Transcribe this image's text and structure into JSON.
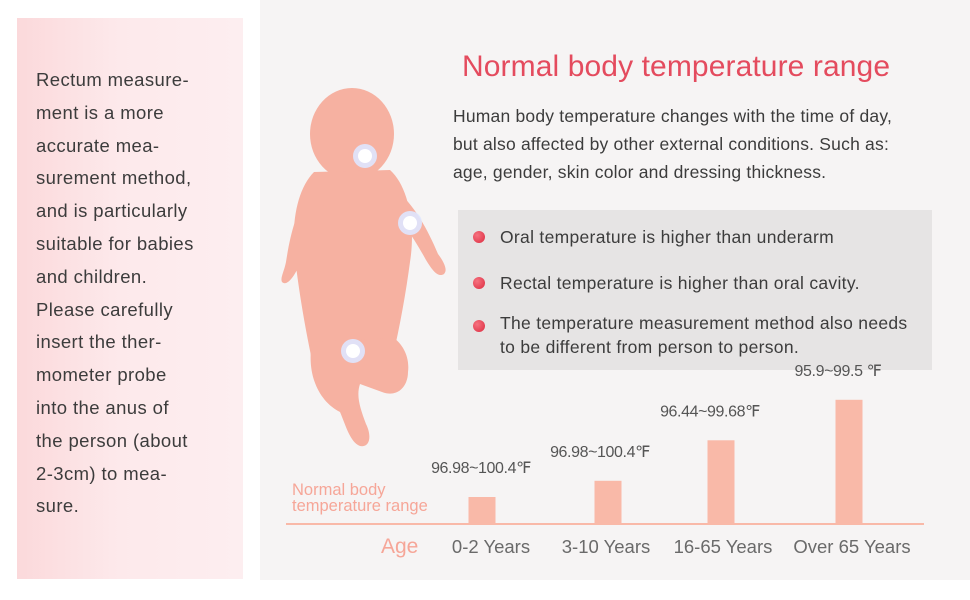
{
  "left_panel": {
    "text": "Rectum measure-\nment is a more\naccurate mea-\nsurement method,\nand is particularly\nsuitable for babies\nand children.\nPlease carefully\ninsert the ther-\nmometer probe\ninto the anus of\nthe person (about\n2-3cm) to mea-\nsure."
  },
  "header": {
    "title": "Normal body temperature range",
    "intro": "Human body temperature changes with the time of day,\nbut also affected by other external conditions. Such as:\nage, gender, skin color and dressing thickness."
  },
  "info_box": {
    "items": [
      "Oral temperature is higher than underarm",
      "Rectal temperature is higher than oral cavity.",
      "The temperature measurement method also needs to be different from person to person."
    ]
  },
  "colors": {
    "title": "#e44b5e",
    "bar": "#f9b9a8",
    "bullet": "#e0374a",
    "accent_label": "#f6a698",
    "baby": "#f6b1a1"
  },
  "chart_data": {
    "type": "bar",
    "categories": [
      "0-2 Years",
      "3-10 Years",
      "16-65 Years",
      "Over 65 Years"
    ],
    "values": [
      1,
      1.6,
      3.1,
      4.6
    ],
    "value_labels": [
      "96.98~100.4℉",
      "96.98~100.4℉",
      "96.44~99.68℉",
      "95.9~99.5 ℉"
    ],
    "legend_label": "Normal body\ntemperature range",
    "xlabel": "Age",
    "ylabel": "",
    "ylim": [
      0,
      5
    ],
    "grid": false
  }
}
